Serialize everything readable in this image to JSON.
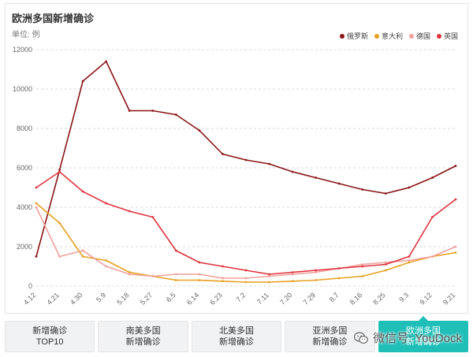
{
  "header": {
    "title": "欧洲多国新增确诊",
    "unit": "单位: 例"
  },
  "legend": [
    {
      "name": "俄罗斯",
      "color": "#8b1414"
    },
    {
      "name": "意大利",
      "color": "#e8a020"
    },
    {
      "name": "德国",
      "color": "#f2a09a"
    },
    {
      "name": "英国",
      "color": "#e0323c"
    }
  ],
  "tabs": [
    {
      "line1": "新增确诊",
      "line2": "TOP10",
      "active": false
    },
    {
      "line1": "南美多国",
      "line2": "新增确诊",
      "active": false
    },
    {
      "line1": "北美多国",
      "line2": "新增确诊",
      "active": false
    },
    {
      "line1": "亚洲多国",
      "line2": "新增确诊",
      "active": false
    },
    {
      "line1": "欧洲多国",
      "line2": "新增确诊",
      "active": true
    }
  ],
  "watermark": {
    "text": "微信号: YouDock",
    "icon": "wechat-icon"
  },
  "chart_data": {
    "type": "line",
    "title": "欧洲多国新增确诊",
    "ylabel": "单位: 例",
    "ylim": [
      0,
      12000
    ],
    "yticks": [
      "0",
      "2000",
      "4000",
      "6000",
      "8000",
      "10000",
      "12000"
    ],
    "categories": [
      "4.12",
      "4.21",
      "4.30",
      "5.9",
      "5.18",
      "5.27",
      "6.5",
      "6.14",
      "6.23",
      "7.2",
      "7.11",
      "7.20",
      "7.29",
      "8.7",
      "8.16",
      "8.25",
      "9.3",
      "9.12",
      "9.21"
    ],
    "series": [
      {
        "name": "俄罗斯",
        "color": "#8b1414",
        "values": [
          1500,
          5900,
          10400,
          11400,
          8900,
          8900,
          8700,
          7900,
          6700,
          6400,
          6200,
          5800,
          5500,
          5200,
          4900,
          4700,
          5000,
          5500,
          6100
        ]
      },
      {
        "name": "意大利",
        "color": "#e8a020",
        "values": [
          4200,
          3200,
          1500,
          1300,
          700,
          500,
          300,
          300,
          250,
          200,
          200,
          250,
          300,
          400,
          500,
          800,
          1200,
          1500,
          1700
        ]
      },
      {
        "name": "德国",
        "color": "#f2a09a",
        "values": [
          4000,
          1500,
          1800,
          1000,
          600,
          500,
          600,
          600,
          400,
          400,
          500,
          600,
          700,
          900,
          1100,
          1200,
          1300,
          1500,
          2000
        ]
      },
      {
        "name": "英国",
        "color": "#e0323c",
        "values": [
          5000,
          5800,
          4800,
          4200,
          3800,
          3500,
          1800,
          1200,
          1000,
          800,
          600,
          700,
          800,
          900,
          1000,
          1100,
          1500,
          3500,
          4400
        ]
      }
    ]
  }
}
